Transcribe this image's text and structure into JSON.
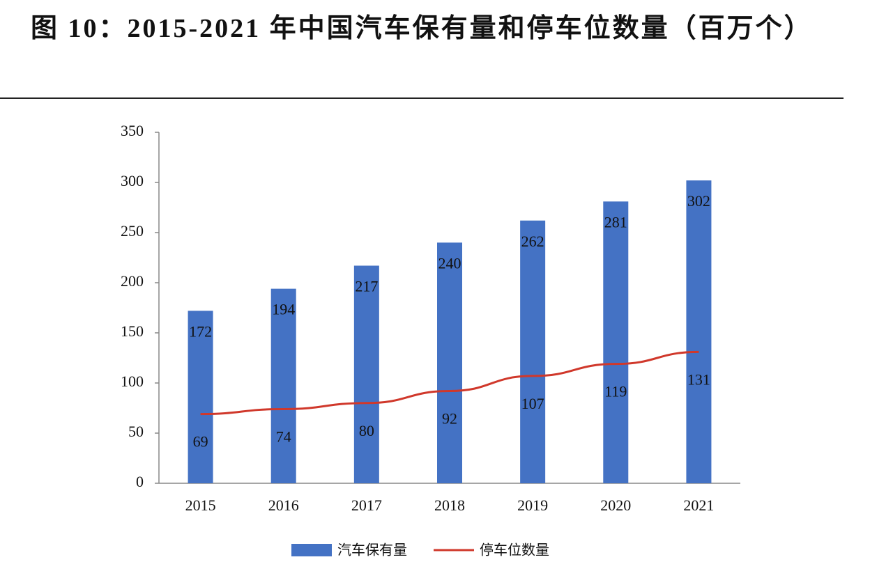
{
  "chart_data": {
    "type": "bar",
    "title": "图 10：2015-2021 年中国汽车保有量和停车位数量（百万个）",
    "categories": [
      "2015",
      "2016",
      "2017",
      "2018",
      "2019",
      "2020",
      "2021"
    ],
    "series": [
      {
        "name": "汽车保有量",
        "type": "bar",
        "color": "#4472c4",
        "values": [
          172,
          194,
          217,
          240,
          262,
          281,
          302
        ]
      },
      {
        "name": "停车位数量",
        "type": "line",
        "color": "#d0382b",
        "values": [
          69,
          74,
          80,
          92,
          107,
          119,
          131
        ]
      }
    ],
    "ylim": [
      0,
      350
    ],
    "yticks": [
      0,
      50,
      100,
      150,
      200,
      250,
      300,
      350
    ],
    "legend": "bottom"
  }
}
